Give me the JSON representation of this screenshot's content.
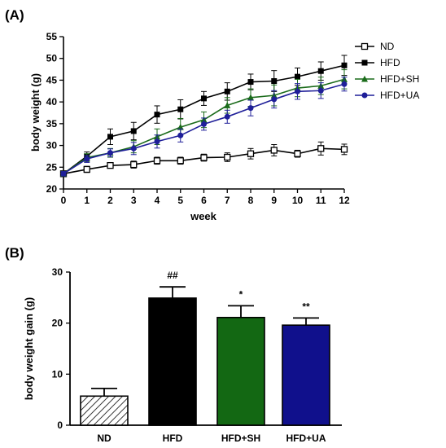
{
  "colors": {
    "ND": "#000000",
    "HFD": "#000000",
    "HFD+SH": "#1a6b1a",
    "HFD+UA": "#1f1f99",
    "bar_ND_fill": "#ffffff",
    "bar_HFD_fill": "#000000",
    "bar_SH_fill": "#136813",
    "bar_UA_fill": "#10108c"
  },
  "chart_data": [
    {
      "type": "line",
      "panel_label": "(A)",
      "xlabel": "week",
      "ylabel": "body weight (g)",
      "xlim": [
        0,
        12
      ],
      "ylim": [
        20,
        55
      ],
      "x": [
        0,
        1,
        2,
        3,
        4,
        5,
        6,
        7,
        8,
        9,
        10,
        11,
        12
      ],
      "x_ticks": [
        0,
        1,
        2,
        3,
        4,
        5,
        6,
        7,
        8,
        9,
        10,
        11,
        12
      ],
      "y_ticks": [
        20,
        25,
        30,
        35,
        40,
        45,
        50,
        55
      ],
      "grid": false,
      "legend_position": "top-right",
      "series": [
        {
          "name": "ND",
          "marker": "open-square",
          "values": [
            23.5,
            24.5,
            25.4,
            25.6,
            26.5,
            26.5,
            27.2,
            27.3,
            28.1,
            28.9,
            28.1,
            29.3,
            29.1
          ],
          "errors": [
            0.5,
            0.7,
            0.6,
            0.8,
            0.8,
            0.8,
            0.8,
            1.0,
            1.2,
            1.3,
            0.8,
            1.5,
            1.2
          ]
        },
        {
          "name": "HFD",
          "marker": "filled-square",
          "values": [
            23.5,
            27.5,
            32.0,
            33.3,
            37.1,
            38.3,
            40.8,
            42.4,
            44.6,
            44.8,
            45.8,
            47.1,
            48.4
          ],
          "errors": [
            0.5,
            1.0,
            1.8,
            2.0,
            2.0,
            2.2,
            1.6,
            2.0,
            1.8,
            2.4,
            2.0,
            2.1,
            2.3
          ]
        },
        {
          "name": "HFD+SH",
          "marker": "filled-triangle",
          "values": [
            23.5,
            27.2,
            28.3,
            29.7,
            32.0,
            34.2,
            35.9,
            39.2,
            41.0,
            41.5,
            43.2,
            43.7,
            45.2
          ],
          "errors": [
            0.5,
            0.9,
            1.0,
            1.4,
            1.8,
            2.0,
            1.8,
            1.8,
            2.0,
            2.4,
            2.0,
            2.0,
            2.2
          ]
        },
        {
          "name": "HFD+UA",
          "marker": "filled-circle",
          "values": [
            23.5,
            26.9,
            28.3,
            29.3,
            30.9,
            32.3,
            34.9,
            36.6,
            38.6,
            40.6,
            42.4,
            42.6,
            44.1
          ],
          "errors": [
            0.5,
            0.8,
            0.9,
            1.4,
            1.5,
            1.5,
            1.4,
            1.5,
            1.8,
            2.0,
            1.8,
            1.8,
            1.6
          ]
        }
      ]
    },
    {
      "type": "bar",
      "panel_label": "(B)",
      "ylabel": "body weight gain (g)",
      "xlabel": "",
      "ylim": [
        0,
        30
      ],
      "y_ticks": [
        0,
        10,
        20,
        30
      ],
      "grid": false,
      "categories": [
        "ND",
        "HFD",
        "HFD+SH",
        "HFD+UA"
      ],
      "values": [
        5.7,
        24.9,
        21.1,
        19.6
      ],
      "errors": [
        1.5,
        2.2,
        2.3,
        1.4
      ],
      "significance_labels": [
        "",
        "##",
        "*",
        "**"
      ]
    }
  ]
}
